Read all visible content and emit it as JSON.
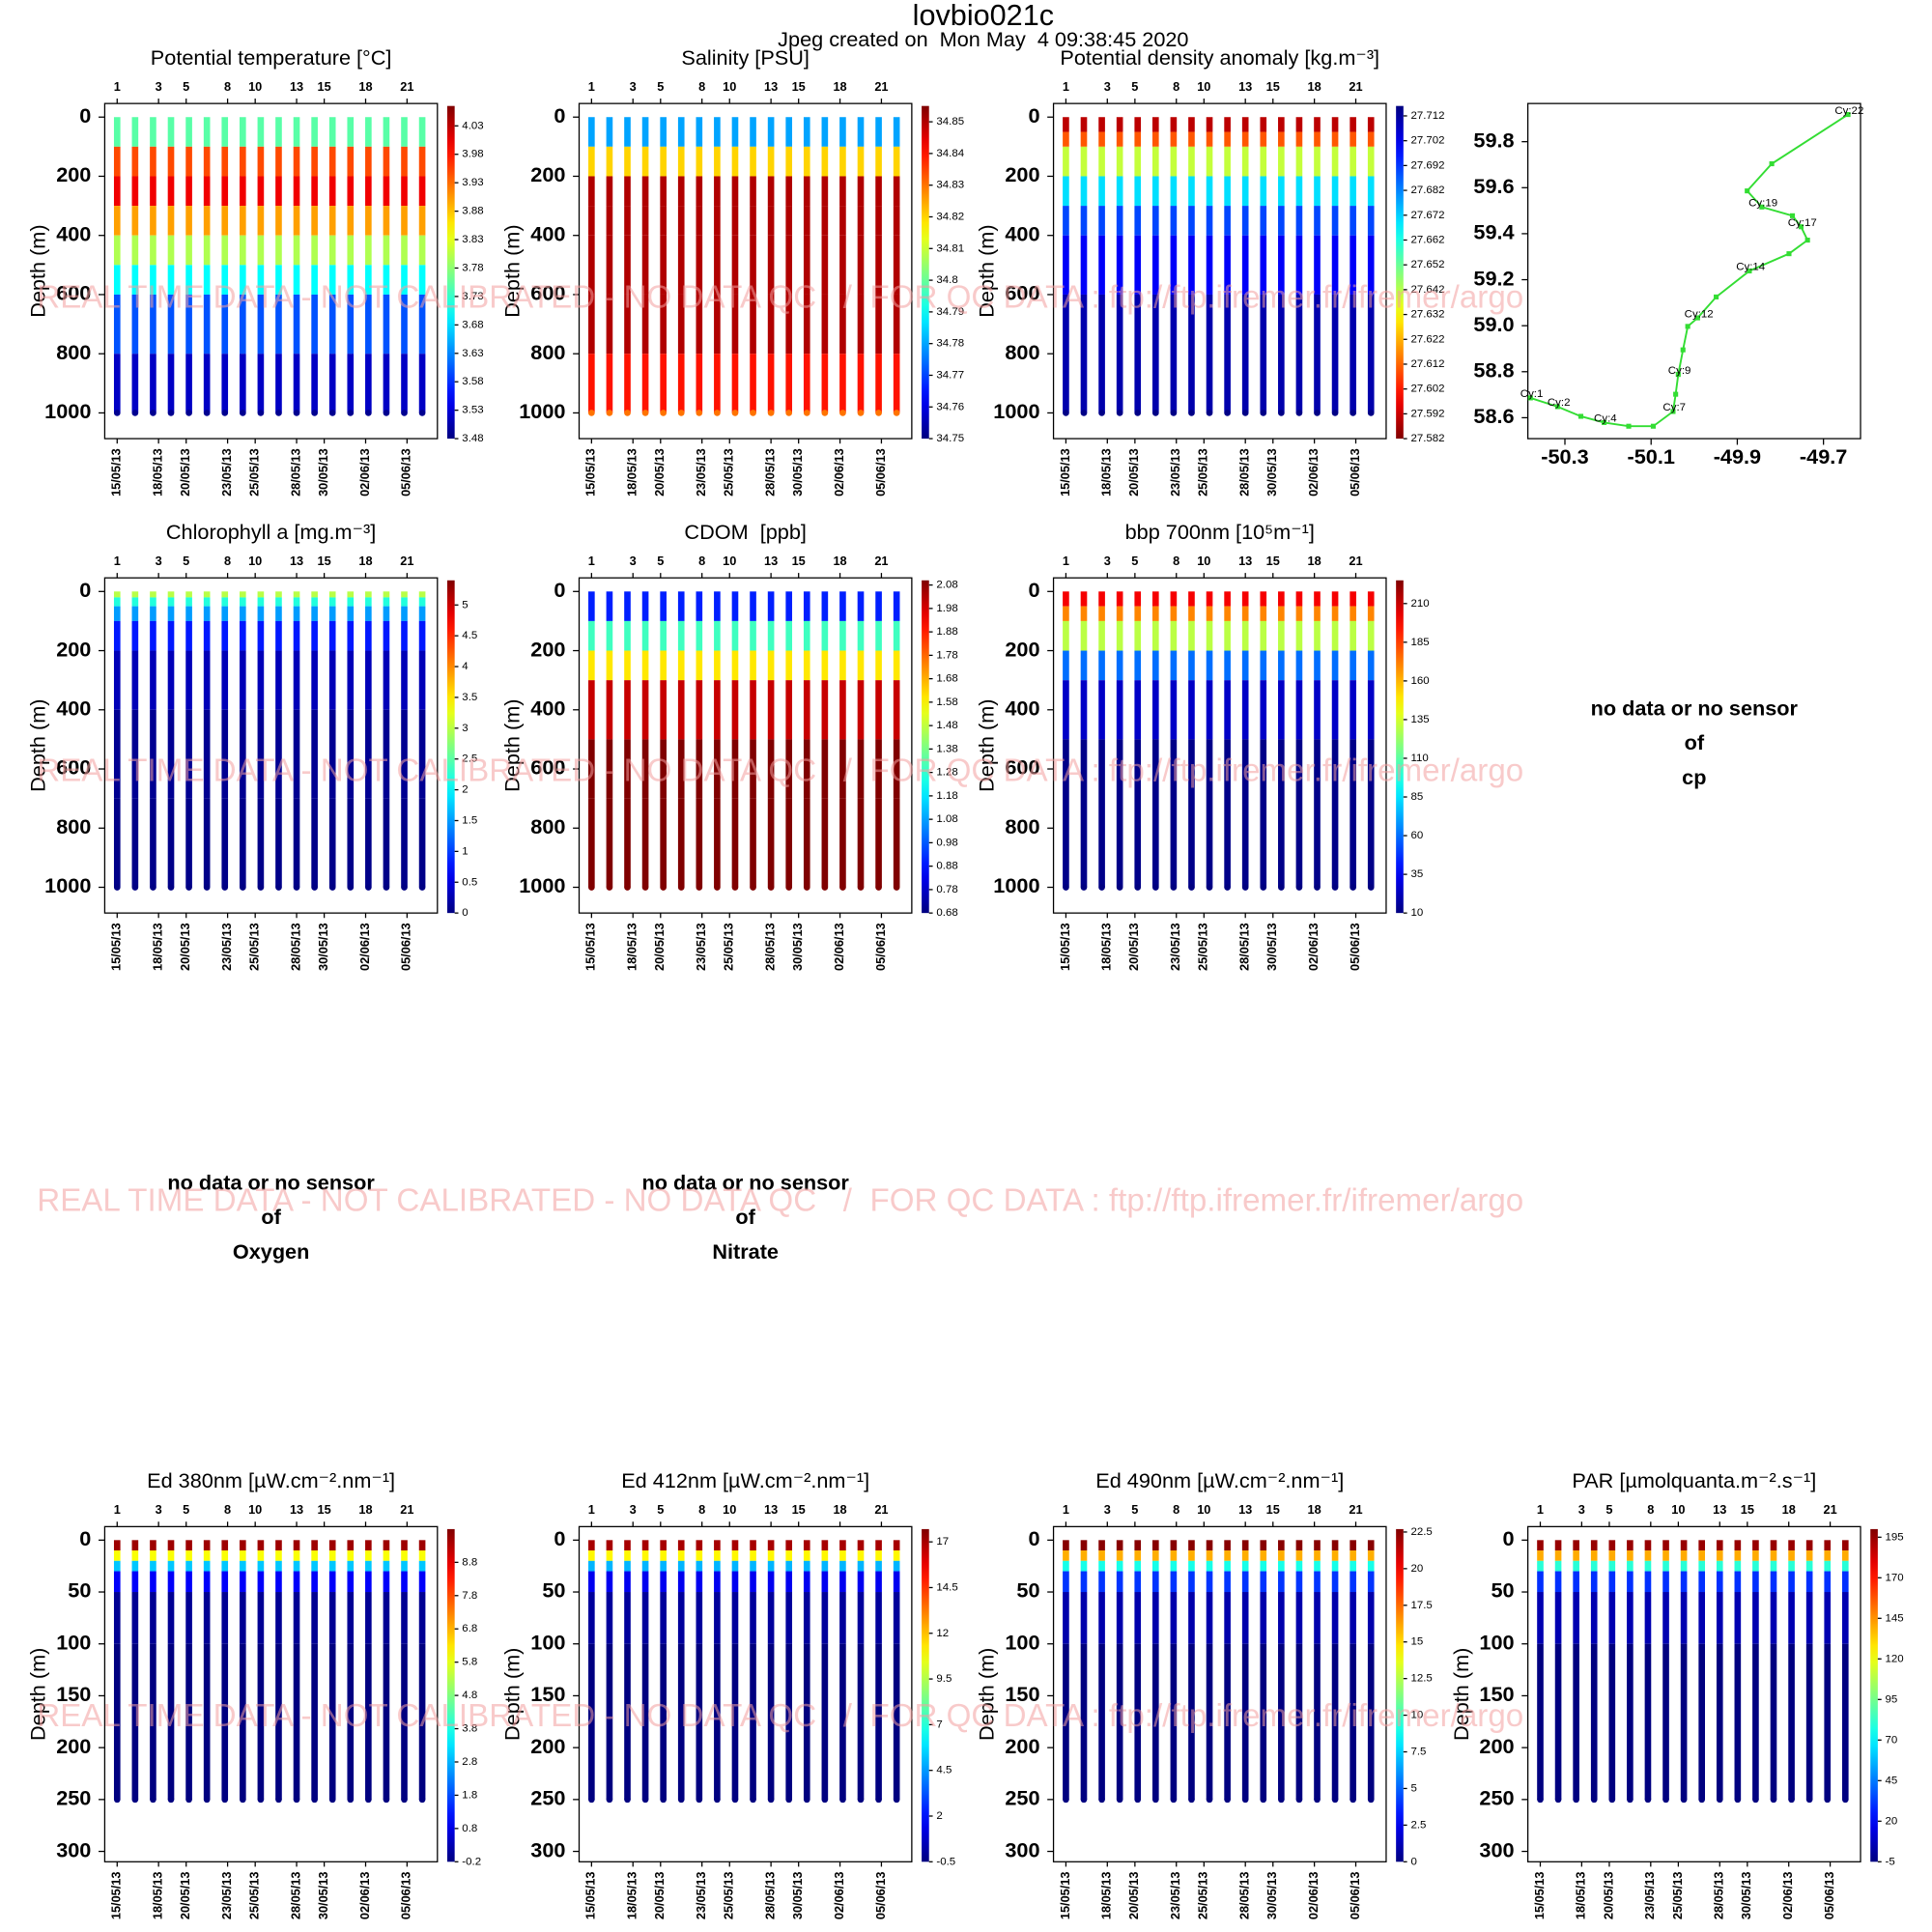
{
  "title": "lovbio021c",
  "subtitle": "Jpeg created on  Mon May  4 09:38:45 2020",
  "watermark": "REAL TIME DATA - NOT CALIBRATED - NO DATA QC   /  FOR QC DATA : ftp://ftp.ifremer.fr/ifremer/argo",
  "ylabel": "Depth (m)",
  "xaxis": {
    "xlim": [
      -0.9,
      23.2
    ],
    "date_ticks": [
      {
        "value": 0,
        "label": "15/05/13"
      },
      {
        "value": 3,
        "label": "18/05/13"
      },
      {
        "value": 5,
        "label": "20/05/13"
      },
      {
        "value": 8,
        "label": "23/05/13"
      },
      {
        "value": 10,
        "label": "25/05/13"
      },
      {
        "value": 13,
        "label": "28/05/13"
      },
      {
        "value": 15,
        "label": "30/05/13"
      },
      {
        "value": 18,
        "label": "02/06/13"
      },
      {
        "value": 21,
        "label": "05/06/13"
      }
    ],
    "cycle_ticks": [
      {
        "value": 0,
        "label": "1"
      },
      {
        "value": 3,
        "label": "3"
      },
      {
        "value": 5,
        "label": "5"
      },
      {
        "value": 8,
        "label": "8"
      },
      {
        "value": 10,
        "label": "10"
      },
      {
        "value": 13,
        "label": "13"
      },
      {
        "value": 15,
        "label": "15"
      },
      {
        "value": 18,
        "label": "18"
      },
      {
        "value": 21,
        "label": "21"
      }
    ],
    "profile_days": [
      0,
      1.3,
      2.6,
      3.9,
      5.2,
      6.5,
      7.8,
      9.1,
      10.4,
      11.7,
      13,
      14.3,
      15.6,
      16.9,
      18.2,
      19.5,
      20.8,
      22.1
    ]
  },
  "panels": [
    {
      "type": "profile",
      "title": "Potential temperature [°C]",
      "ylim": [
        -46,
        1087
      ],
      "yticks": [
        0,
        200,
        400,
        600,
        800,
        1000
      ],
      "cbar": {
        "lim": [
          3.48,
          4.065
        ],
        "ticks": [
          3.48,
          3.53,
          3.58,
          3.63,
          3.68,
          3.73,
          3.78,
          3.83,
          3.88,
          3.93,
          3.98,
          4.03
        ]
      },
      "profile": {
        "depth": [
          0,
          100,
          200,
          300,
          400,
          500,
          600,
          800,
          1000
        ],
        "values": [
          3.75,
          3.95,
          4.0,
          3.9,
          3.8,
          3.7,
          3.6,
          3.52,
          3.49
        ]
      }
    },
    {
      "type": "profile",
      "title": "Salinity [PSU]",
      "ylim": [
        -46,
        1087
      ],
      "yticks": [
        0,
        200,
        400,
        600,
        800,
        1000
      ],
      "cbar": {
        "lim": [
          34.75,
          34.855
        ],
        "ticks": [
          34.75,
          34.76,
          34.77,
          34.78,
          34.79,
          34.8,
          34.81,
          34.82,
          34.83,
          34.84,
          34.85
        ]
      },
      "profile": {
        "depth": [
          0,
          100,
          200,
          300,
          400,
          600,
          800,
          1000
        ],
        "values": [
          34.78,
          34.82,
          34.85,
          34.85,
          34.85,
          34.85,
          34.84,
          34.83
        ]
      }
    },
    {
      "type": "profile",
      "title": "Potential density anomaly [kg.m⁻³]",
      "reversed": true,
      "ylim": [
        -46,
        1087
      ],
      "yticks": [
        0,
        200,
        400,
        600,
        800,
        1000
      ],
      "cbar": {
        "lim": [
          27.582,
          27.716
        ],
        "ticks": [
          27.582,
          27.592,
          27.602,
          27.612,
          27.622,
          27.632,
          27.642,
          27.652,
          27.662,
          27.672,
          27.682,
          27.692,
          27.702,
          27.712
        ]
      },
      "profile": {
        "depth": [
          0,
          50,
          100,
          200,
          300,
          400,
          600,
          1000
        ],
        "values": [
          27.59,
          27.61,
          27.64,
          27.67,
          27.69,
          27.7,
          27.71,
          27.715
        ]
      }
    },
    {
      "type": "profile",
      "title": "Chlorophyll a [mg.m⁻³]",
      "ylim": [
        -46,
        1087
      ],
      "yticks": [
        0,
        200,
        400,
        600,
        800,
        1000
      ],
      "cbar": {
        "lim": [
          0,
          5.4
        ],
        "ticks": [
          0,
          0.5,
          1,
          1.5,
          2,
          2.5,
          3,
          3.5,
          4,
          4.5,
          5
        ]
      },
      "profile": {
        "depth": [
          0,
          20,
          50,
          100,
          200,
          400,
          700,
          1000
        ],
        "values": [
          3,
          2.2,
          1.5,
          0.8,
          0.3,
          0.1,
          0.05,
          0.02
        ]
      }
    },
    {
      "type": "profile",
      "title": "CDOM  [ppb]",
      "ylim": [
        -46,
        1087
      ],
      "yticks": [
        0,
        200,
        400,
        600,
        800,
        1000
      ],
      "cbar": {
        "lim": [
          0.68,
          2.1
        ],
        "ticks": [
          0.68,
          0.78,
          0.88,
          0.98,
          1.08,
          1.18,
          1.28,
          1.38,
          1.48,
          1.58,
          1.68,
          1.78,
          1.88,
          1.98,
          2.08
        ]
      },
      "profile": {
        "depth": [
          0,
          100,
          200,
          300,
          500,
          700,
          1000
        ],
        "values": [
          0.9,
          1.3,
          1.6,
          2.0,
          2.1,
          2.1,
          2.1
        ]
      }
    },
    {
      "type": "profile",
      "title": "bbp 700nm [10⁵m⁻¹]",
      "ylim": [
        -46,
        1087
      ],
      "yticks": [
        0,
        200,
        400,
        600,
        800,
        1000
      ],
      "cbar": {
        "lim": [
          10,
          225
        ],
        "ticks": [
          10,
          35,
          60,
          85,
          110,
          135,
          160,
          185,
          210
        ]
      },
      "profile": {
        "depth": [
          0,
          50,
          100,
          200,
          300,
          500,
          1000
        ],
        "values": [
          200,
          170,
          130,
          60,
          25,
          12,
          10
        ]
      }
    },
    {
      "type": "profile",
      "title": "Ed 380nm [µW.cm⁻².nm⁻¹]",
      "ylim": [
        -13,
        310
      ],
      "yticks": [
        0,
        50,
        100,
        150,
        200,
        250,
        300
      ],
      "cbar": {
        "lim": [
          -0.2,
          9.8
        ],
        "ticks": [
          -0.2,
          0.8,
          1.8,
          2.8,
          3.8,
          4.8,
          5.8,
          6.8,
          7.8,
          8.8
        ]
      },
      "profile": {
        "depth": [
          0,
          10,
          20,
          30,
          50,
          100,
          250
        ],
        "values": [
          9.5,
          6,
          3,
          1,
          0,
          -0.2,
          -0.2
        ]
      }
    },
    {
      "type": "profile",
      "title": "Ed 412nm [µW.cm⁻².nm⁻¹]",
      "ylim": [
        -13,
        310
      ],
      "yticks": [
        0,
        50,
        100,
        150,
        200,
        250,
        300
      ],
      "cbar": {
        "lim": [
          -0.5,
          17.7
        ],
        "ticks": [
          -0.5,
          2,
          4.5,
          7,
          9.5,
          12,
          14.5,
          17
        ]
      },
      "profile": {
        "depth": [
          0,
          10,
          20,
          30,
          50,
          100,
          250
        ],
        "values": [
          17,
          11,
          5,
          1.5,
          0,
          -0.5,
          -0.5
        ]
      }
    },
    {
      "type": "profile",
      "title": "Ed 490nm [µW.cm⁻².nm⁻¹]",
      "ylim": [
        -13,
        310
      ],
      "yticks": [
        0,
        50,
        100,
        150,
        200,
        250,
        300
      ],
      "cbar": {
        "lim": [
          0,
          22.7
        ],
        "ticks": [
          0,
          2.5,
          5,
          7.5,
          10,
          12.5,
          15,
          17.5,
          20,
          22.5
        ]
      },
      "profile": {
        "depth": [
          0,
          10,
          20,
          30,
          50,
          100,
          250
        ],
        "values": [
          22.5,
          16,
          9,
          4,
          1,
          0,
          0
        ]
      }
    },
    {
      "type": "profile",
      "title": "PAR [µmolquanta.m⁻².s⁻¹]",
      "ylim": [
        -13,
        310
      ],
      "yticks": [
        0,
        50,
        100,
        150,
        200,
        250,
        300
      ],
      "cbar": {
        "lim": [
          -5,
          200
        ],
        "ticks": [
          -5,
          20,
          45,
          70,
          95,
          120,
          145,
          170,
          195
        ]
      },
      "profile": {
        "depth": [
          0,
          10,
          20,
          30,
          50,
          100,
          250
        ],
        "values": [
          195,
          140,
          80,
          30,
          5,
          -5,
          -5
        ]
      }
    }
  ],
  "map": {
    "type": "line",
    "color": "#33dd33",
    "x": [
      -50.38,
      -50.317,
      -50.263,
      -50.209,
      -50.152,
      -50.095,
      -50.049,
      -50.043,
      -50.037,
      -50.026,
      -50.015,
      -49.992,
      -49.949,
      -49.872,
      -49.78,
      -49.737,
      -49.752,
      -49.772,
      -49.843,
      -49.877,
      -49.82,
      -49.643
    ],
    "values": [
      58.686,
      58.648,
      58.606,
      58.579,
      58.563,
      58.563,
      58.627,
      58.702,
      58.788,
      58.895,
      58.997,
      59.034,
      59.125,
      59.238,
      59.313,
      59.372,
      59.43,
      59.478,
      59.516,
      59.586,
      59.704,
      59.918
    ],
    "labels": [
      "Cy:1",
      "Cy:2",
      null,
      "Cy:4",
      null,
      null,
      "Cy:7",
      null,
      "Cy:9",
      null,
      null,
      "Cy:12",
      null,
      "Cy:14",
      null,
      null,
      "Cy:17",
      null,
      "Cy:19",
      null,
      null,
      "Cy:22"
    ],
    "xlim": [
      -50.386,
      -49.614
    ],
    "ylim": [
      58.509,
      59.966
    ],
    "xticks": [
      -50.3,
      -50.1,
      -49.9,
      -49.7
    ],
    "yticks": [
      58.6,
      58.8,
      {
        "value": 59,
        "label": "59.0"
      },
      59.2,
      59.4,
      59.6,
      59.8
    ]
  },
  "notes": [
    [
      "no data or no sensor",
      "of",
      "cp"
    ],
    [
      "no data or no sensor",
      "of",
      "Oxygen"
    ],
    [
      "no data or no sensor",
      "of",
      "Nitrate"
    ]
  ]
}
